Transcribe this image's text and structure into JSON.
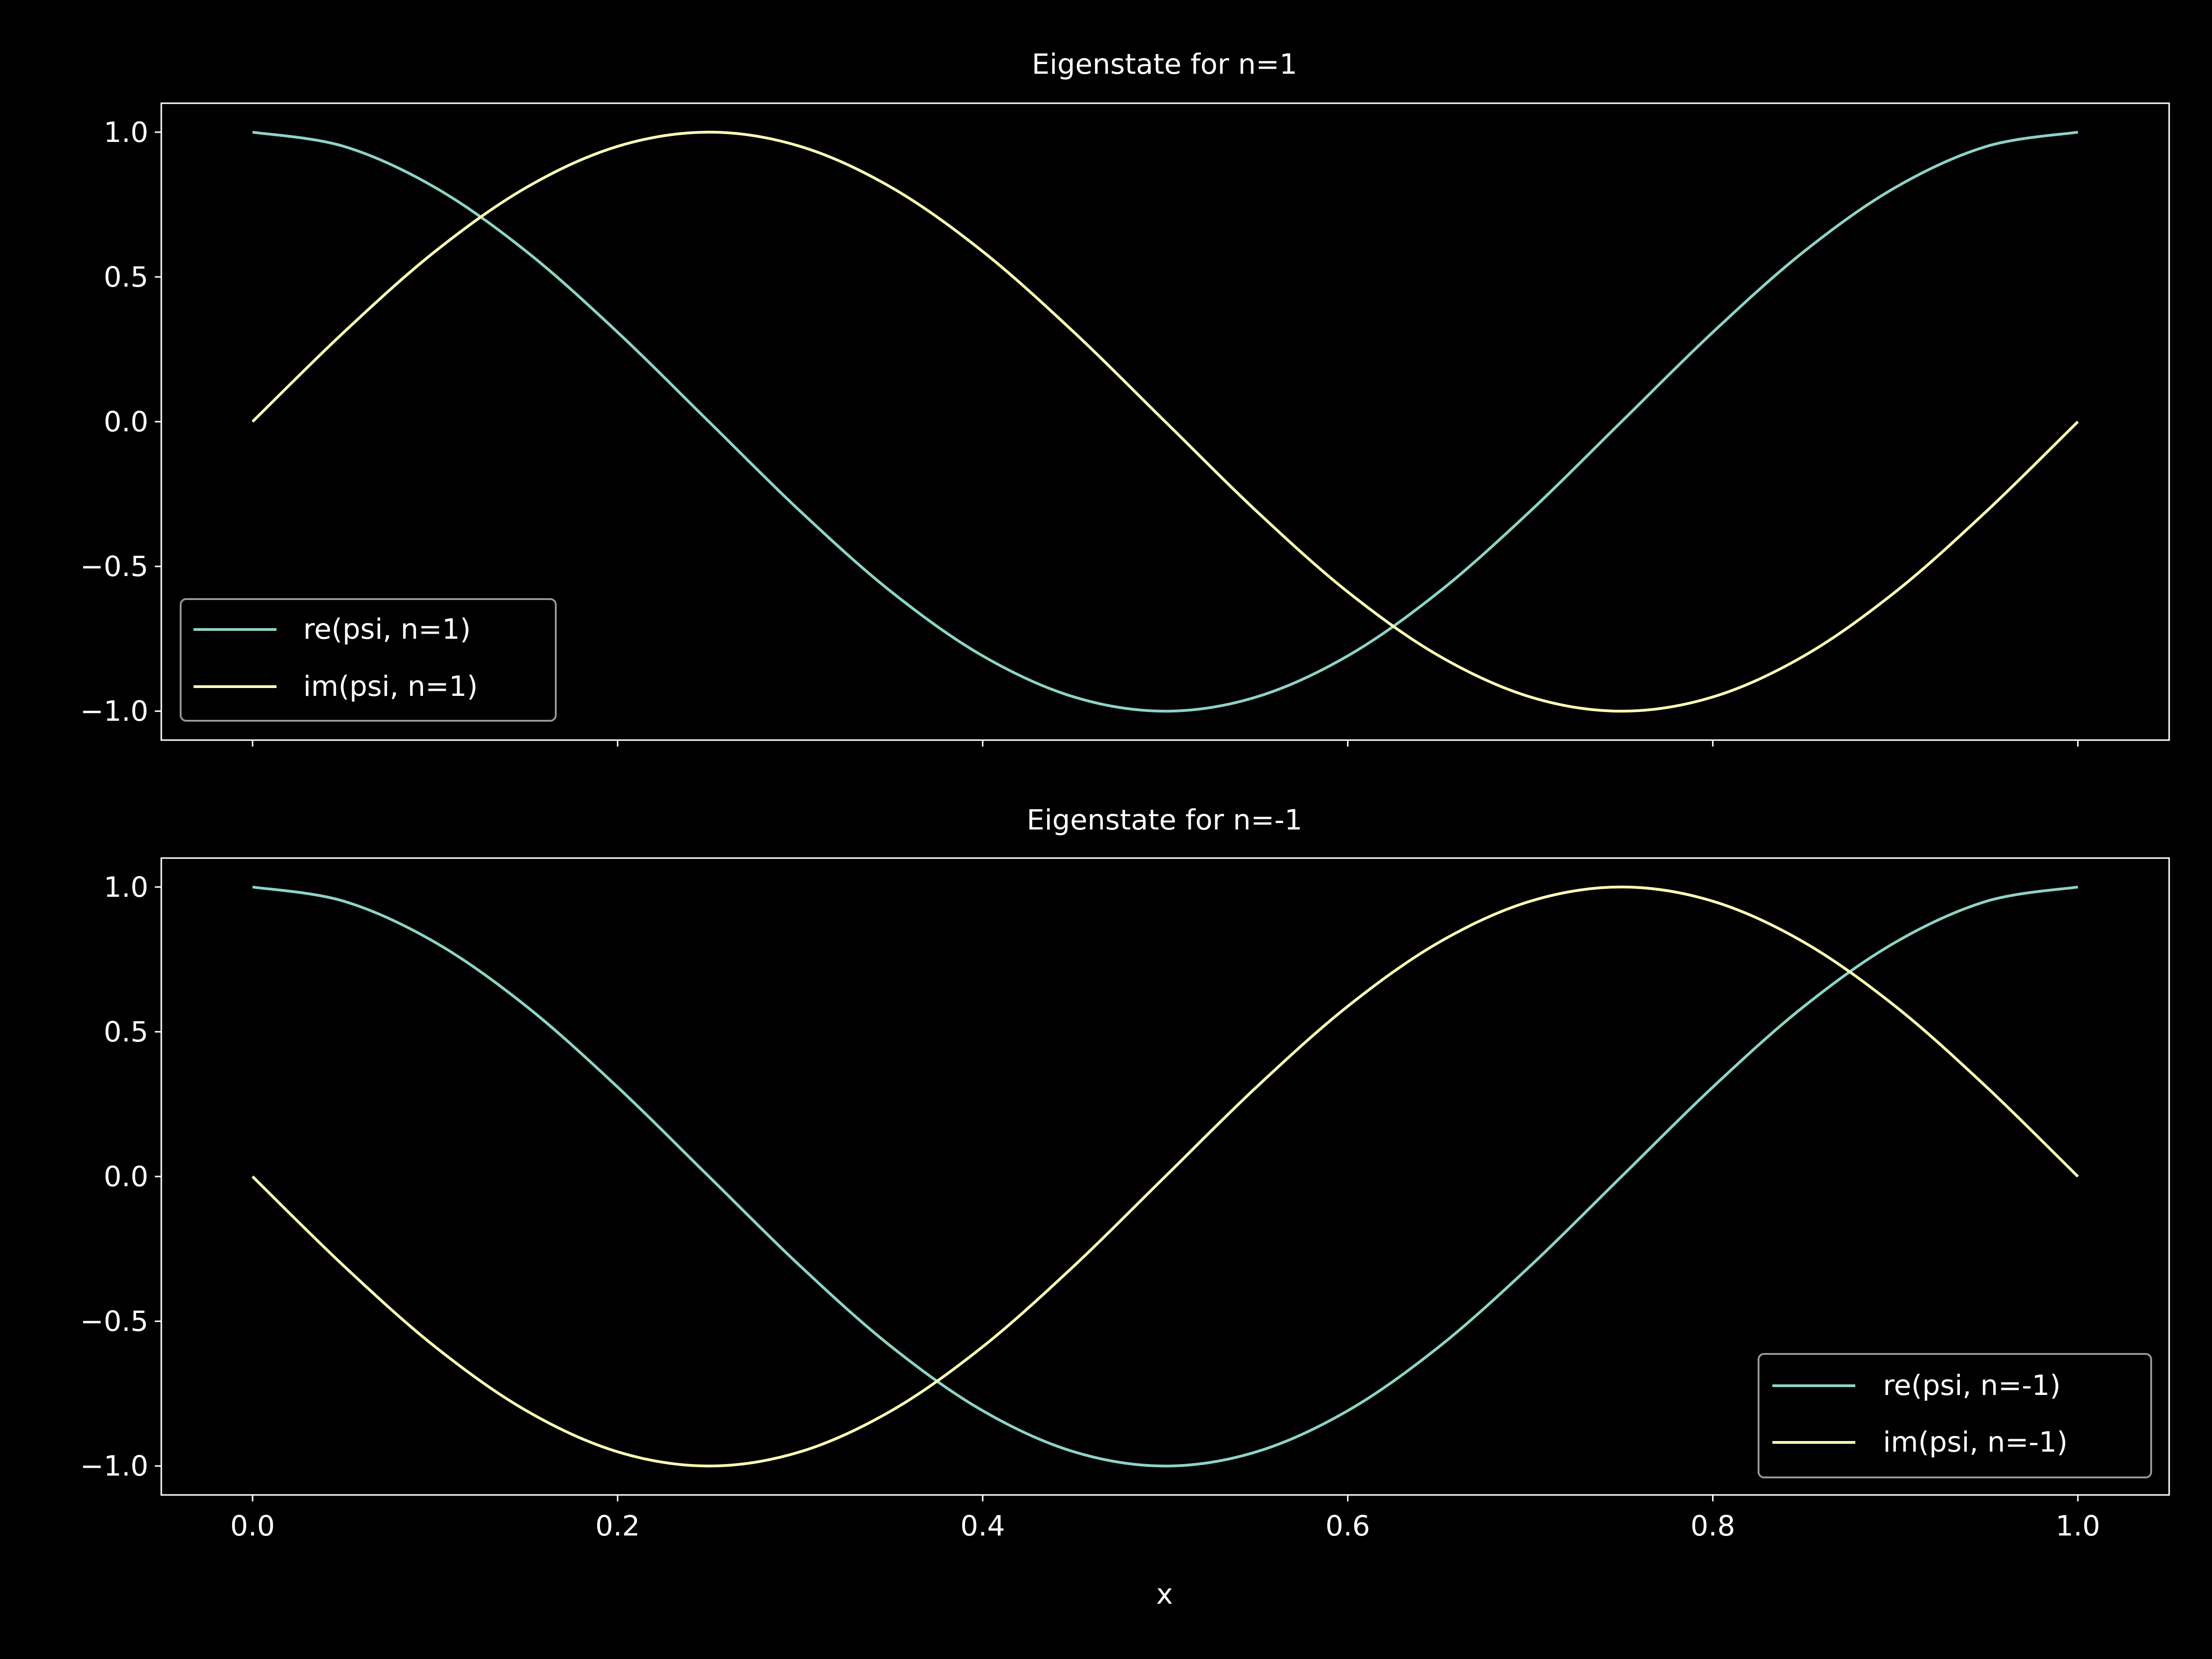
{
  "style": {
    "background": "#000000",
    "foreground": "#ffffff",
    "series_colors": [
      "#8dd3c7",
      "#feffb3"
    ],
    "legend_frame": "#ffffff",
    "legend_background": "#000000"
  },
  "chart_data": [
    {
      "type": "line",
      "title": "Eigenstate for n=1",
      "xlabel": "",
      "ylabel": "",
      "xlim": [
        -0.05,
        1.05
      ],
      "ylim": [
        -1.1,
        1.1
      ],
      "xticks": [
        0.0,
        0.2,
        0.4,
        0.6,
        0.8,
        1.0
      ],
      "xtick_labels_visible": false,
      "yticks": [
        1.0,
        0.5,
        0.0,
        -0.5,
        -1.0
      ],
      "ytick_labels": [
        "1.0",
        "0.5",
        "0.0",
        "−0.5",
        "−1.0"
      ],
      "grid": false,
      "legend_position": "lower-left",
      "x": [
        0,
        0.05,
        0.1,
        0.15,
        0.2,
        0.25,
        0.3,
        0.35,
        0.4,
        0.45,
        0.5,
        0.55,
        0.6,
        0.65,
        0.7,
        0.75,
        0.8,
        0.85,
        0.9,
        0.95,
        1.0
      ],
      "series": [
        {
          "name": "re(psi, n=1)",
          "values": [
            1.0,
            0.951,
            0.809,
            0.588,
            0.309,
            0.0,
            -0.309,
            -0.588,
            -0.809,
            -0.951,
            -1.0,
            -0.951,
            -0.809,
            -0.588,
            -0.309,
            0.0,
            0.309,
            0.588,
            0.809,
            0.951,
            1.0
          ]
        },
        {
          "name": "im(psi, n=1)",
          "values": [
            0.0,
            0.309,
            0.588,
            0.809,
            0.951,
            1.0,
            0.951,
            0.809,
            0.588,
            0.309,
            0.0,
            -0.309,
            -0.588,
            -0.809,
            -0.951,
            -1.0,
            -0.951,
            -0.809,
            -0.588,
            -0.309,
            0.0
          ]
        }
      ]
    },
    {
      "type": "line",
      "title": "Eigenstate for n=-1",
      "xlabel": "x",
      "ylabel": "",
      "xlim": [
        -0.05,
        1.05
      ],
      "ylim": [
        -1.1,
        1.1
      ],
      "xticks": [
        0.0,
        0.2,
        0.4,
        0.6,
        0.8,
        1.0
      ],
      "xtick_labels": [
        "0.0",
        "0.2",
        "0.4",
        "0.6",
        "0.8",
        "1.0"
      ],
      "xtick_labels_visible": true,
      "yticks": [
        1.0,
        0.5,
        0.0,
        -0.5,
        -1.0
      ],
      "ytick_labels": [
        "1.0",
        "0.5",
        "0.0",
        "−0.5",
        "−1.0"
      ],
      "grid": false,
      "legend_position": "lower-right",
      "x": [
        0,
        0.05,
        0.1,
        0.15,
        0.2,
        0.25,
        0.3,
        0.35,
        0.4,
        0.45,
        0.5,
        0.55,
        0.6,
        0.65,
        0.7,
        0.75,
        0.8,
        0.85,
        0.9,
        0.95,
        1.0
      ],
      "series": [
        {
          "name": "re(psi, n=-1)",
          "values": [
            1.0,
            0.951,
            0.809,
            0.588,
            0.309,
            0.0,
            -0.309,
            -0.588,
            -0.809,
            -0.951,
            -1.0,
            -0.951,
            -0.809,
            -0.588,
            -0.309,
            0.0,
            0.309,
            0.588,
            0.809,
            0.951,
            1.0
          ]
        },
        {
          "name": "im(psi, n=-1)",
          "values": [
            0.0,
            -0.309,
            -0.588,
            -0.809,
            -0.951,
            -1.0,
            -0.951,
            -0.809,
            -0.588,
            -0.309,
            0.0,
            0.309,
            0.588,
            0.809,
            0.951,
            1.0,
            0.951,
            0.809,
            0.588,
            0.309,
            0.0
          ]
        }
      ]
    }
  ]
}
